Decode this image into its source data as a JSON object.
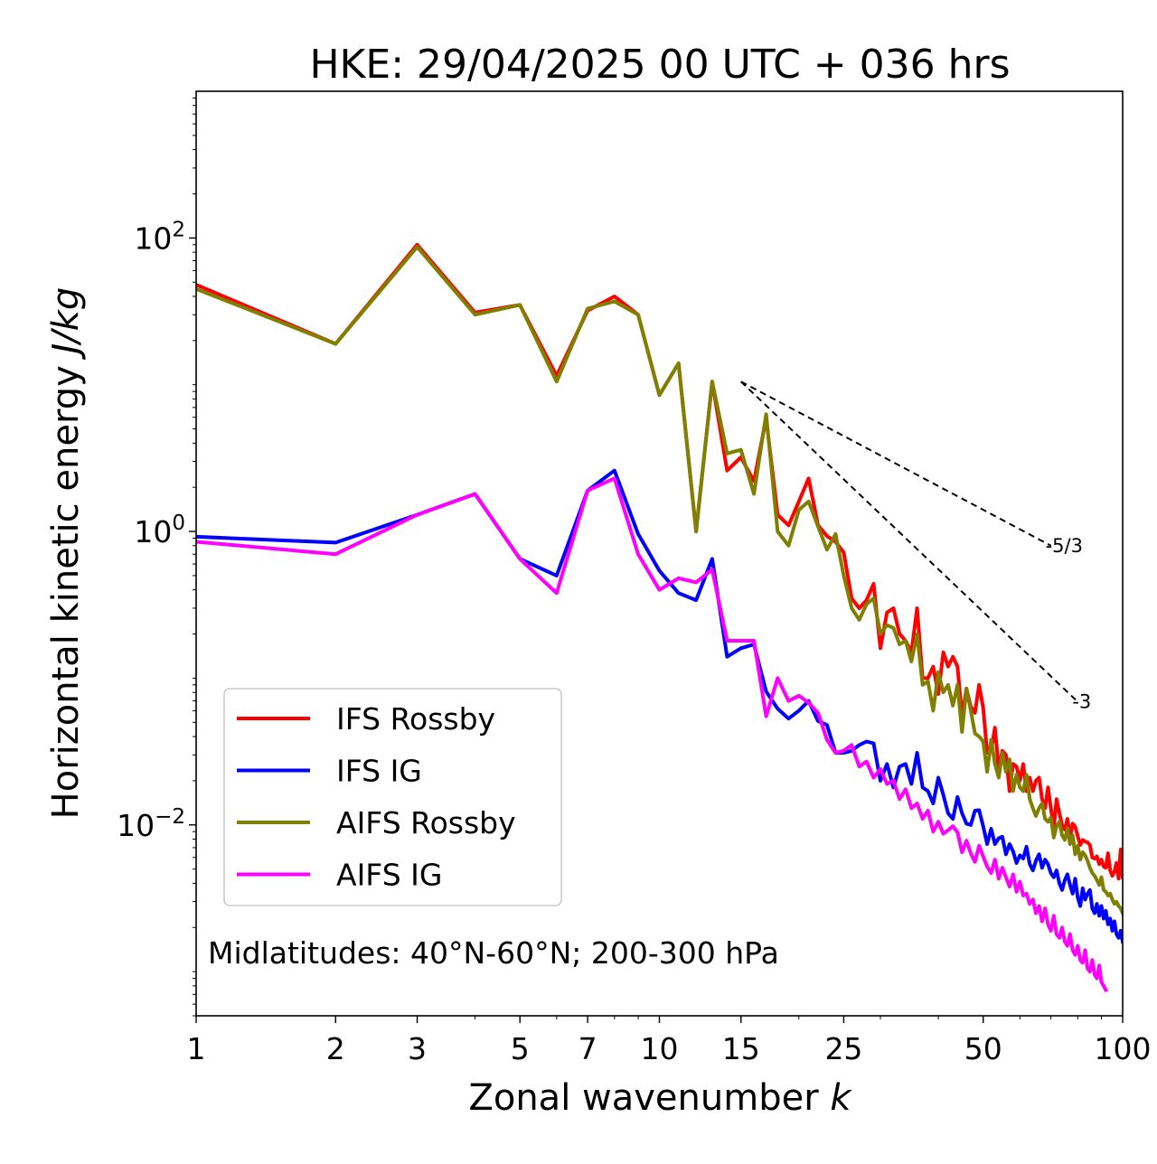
{
  "chart_data": {
    "type": "line",
    "title": "HKE: 29/04/2025 00 UTC + 036 hrs",
    "xlabel": "Zonal wavenumber",
    "xlabel_var": "k",
    "ylabel": "Horizontal kinetic energy",
    "ylabel_unit": "J/kg",
    "xscale": "log",
    "yscale": "log",
    "xlim": [
      1,
      100
    ],
    "ylim": [
      0.0005,
      1000
    ],
    "xticks": [
      {
        "value": 1,
        "label": "1"
      },
      {
        "value": 2,
        "label": "2"
      },
      {
        "value": 3,
        "label": "3"
      },
      {
        "value": 5,
        "label": "5"
      },
      {
        "value": 7,
        "label": "7"
      },
      {
        "value": 10,
        "label": "10"
      },
      {
        "value": 15,
        "label": "15"
      },
      {
        "value": 25,
        "label": "25"
      },
      {
        "value": 50,
        "label": "50"
      },
      {
        "value": 100,
        "label": "100"
      }
    ],
    "yticks": [
      {
        "value": 0.01,
        "base": "10",
        "exp": "−2"
      },
      {
        "value": 1,
        "base": "10",
        "exp": "0"
      },
      {
        "value": 100,
        "base": "10",
        "exp": "2"
      }
    ],
    "annotation": "Midlatitudes: 40°N-60°N; 200-300 hPa",
    "legend_position": "lower-left",
    "reference_lines": [
      {
        "label": "-5/3",
        "x": [
          15,
          70
        ],
        "y": [
          10.5,
          0.8
        ]
      },
      {
        "label": "-3",
        "x": [
          15,
          80
        ],
        "y": [
          10.5,
          0.069
        ]
      }
    ],
    "series": [
      {
        "name": "IFS Rossby",
        "color": "#ff0000",
        "x": [
          1,
          2,
          3,
          4,
          5,
          6,
          7,
          8,
          9,
          10,
          11,
          12,
          13,
          14,
          15,
          16,
          17,
          18,
          19,
          20,
          21,
          22,
          23,
          24,
          25,
          26,
          27,
          28,
          29,
          30,
          31,
          32,
          33,
          34,
          35,
          36,
          37,
          38,
          39,
          40,
          41,
          42,
          43,
          44,
          45,
          46,
          47,
          48,
          49,
          50,
          51,
          52,
          53,
          54,
          55,
          56,
          57,
          58,
          59,
          60,
          61,
          62,
          63,
          64,
          65,
          66,
          67,
          68,
          69,
          70,
          71,
          72,
          73,
          74,
          75,
          76,
          77,
          78,
          79,
          80,
          81,
          82,
          83,
          84,
          85,
          86,
          87,
          88,
          89,
          90,
          91,
          92,
          93,
          94,
          95,
          96,
          97,
          98,
          99,
          100
        ],
        "y": [
          48,
          19,
          90,
          31,
          35,
          11.5,
          32,
          40,
          30,
          8.5,
          14,
          1,
          10.5,
          2.6,
          3.2,
          2.2,
          5.9,
          1.3,
          1.1,
          1.6,
          2.3,
          1.1,
          0.93,
          0.85,
          0.72,
          0.35,
          0.3,
          0.34,
          0.44,
          0.16,
          0.28,
          0.3,
          0.2,
          0.18,
          0.15,
          0.3,
          0.1,
          0.1,
          0.12,
          0.078,
          0.15,
          0.12,
          0.14,
          0.12,
          0.055,
          0.085,
          0.064,
          0.058,
          0.09,
          0.063,
          0.031,
          0.032,
          0.046,
          0.024,
          0.032,
          0.03,
          0.017,
          0.026,
          0.025,
          0.02,
          0.026,
          0.017,
          0.021,
          0.017,
          0.02,
          0.021,
          0.015,
          0.013,
          0.018,
          0.013,
          0.0095,
          0.015,
          0.012,
          0.01,
          0.0093,
          0.011,
          0.0082,
          0.0102,
          0.0097,
          0.0084,
          0.0073,
          0.0079,
          0.0077,
          0.0076,
          0.0073,
          0.006,
          0.0059,
          0.0061,
          0.0054,
          0.0058,
          0.0052,
          0.0051,
          0.0064,
          0.0049,
          0.0045,
          0.0048,
          0.0055,
          0.0043,
          0.0068,
          0.0044
        ]
      },
      {
        "name": "IFS IG",
        "color": "#0000ff",
        "x": [
          1,
          2,
          3,
          4,
          5,
          6,
          7,
          8,
          9,
          10,
          11,
          12,
          13,
          14,
          15,
          16,
          17,
          18,
          19,
          20,
          21,
          22,
          23,
          24,
          25,
          26,
          27,
          28,
          29,
          30,
          31,
          32,
          33,
          34,
          35,
          36,
          37,
          38,
          39,
          40,
          41,
          42,
          43,
          44,
          45,
          46,
          47,
          48,
          49,
          50,
          51,
          52,
          53,
          54,
          55,
          56,
          57,
          58,
          59,
          60,
          61,
          62,
          63,
          64,
          65,
          66,
          67,
          68,
          69,
          70,
          71,
          72,
          73,
          74,
          75,
          76,
          77,
          78,
          79,
          80,
          81,
          82,
          83,
          84,
          85,
          86,
          87,
          88,
          89,
          90,
          91,
          92,
          93,
          94,
          95,
          96,
          97,
          98,
          99,
          100
        ],
        "y": [
          0.92,
          0.84,
          1.3,
          1.8,
          0.65,
          0.5,
          1.9,
          2.6,
          0.96,
          0.54,
          0.38,
          0.34,
          0.65,
          0.14,
          0.16,
          0.17,
          0.081,
          0.062,
          0.053,
          0.06,
          0.07,
          0.051,
          0.048,
          0.031,
          0.031,
          0.032,
          0.035,
          0.037,
          0.036,
          0.02,
          0.026,
          0.018,
          0.025,
          0.026,
          0.019,
          0.031,
          0.018,
          0.017,
          0.014,
          0.021,
          0.016,
          0.012,
          0.011,
          0.0155,
          0.012,
          0.0102,
          0.01,
          0.0125,
          0.0126,
          0.0098,
          0.0074,
          0.0094,
          0.0074,
          0.0081,
          0.0083,
          0.0063,
          0.0074,
          0.0066,
          0.0055,
          0.0062,
          0.0059,
          0.0071,
          0.0054,
          0.0049,
          0.0057,
          0.0063,
          0.0051,
          0.0058,
          0.0054,
          0.0047,
          0.0044,
          0.0049,
          0.004,
          0.0036,
          0.0042,
          0.0046,
          0.0039,
          0.0034,
          0.0043,
          0.0032,
          0.0028,
          0.0037,
          0.0031,
          0.0034,
          0.0036,
          0.0027,
          0.0025,
          0.0029,
          0.0024,
          0.0028,
          0.0023,
          0.0026,
          0.0021,
          0.0023,
          0.0019,
          0.0022,
          0.0018,
          0.0017,
          0.0019,
          0.0016
        ]
      },
      {
        "name": "AIFS Rossby",
        "color": "#808000",
        "x": [
          1,
          2,
          3,
          4,
          5,
          6,
          7,
          8,
          9,
          10,
          11,
          12,
          13,
          14,
          15,
          16,
          17,
          18,
          19,
          20,
          21,
          22,
          23,
          24,
          25,
          26,
          27,
          28,
          29,
          30,
          31,
          32,
          33,
          34,
          35,
          36,
          37,
          38,
          39,
          40,
          41,
          42,
          43,
          44,
          45,
          46,
          47,
          48,
          49,
          50,
          51,
          52,
          53,
          54,
          55,
          56,
          57,
          58,
          59,
          60,
          61,
          62,
          63,
          64,
          65,
          66,
          67,
          68,
          69,
          70,
          71,
          72,
          73,
          74,
          75,
          76,
          77,
          78,
          79,
          80,
          81,
          82,
          83,
          84,
          85,
          86,
          87,
          88,
          89,
          90,
          91,
          92,
          93,
          94,
          95,
          96,
          97,
          98,
          99,
          100
        ],
        "y": [
          45,
          19,
          87,
          30,
          35,
          10.5,
          33,
          37,
          30,
          8.5,
          14,
          1,
          10.5,
          3.4,
          3.6,
          1.8,
          6.3,
          1,
          0.8,
          1.4,
          1.6,
          1.08,
          0.75,
          0.96,
          0.5,
          0.3,
          0.25,
          0.32,
          0.35,
          0.2,
          0.23,
          0.22,
          0.17,
          0.18,
          0.13,
          0.2,
          0.09,
          0.095,
          0.06,
          0.11,
          0.08,
          0.09,
          0.065,
          0.09,
          0.043,
          0.085,
          0.06,
          0.042,
          0.04,
          0.037,
          0.023,
          0.038,
          0.026,
          0.021,
          0.031,
          0.023,
          0.028,
          0.017,
          0.022,
          0.018,
          0.017,
          0.022,
          0.015,
          0.013,
          0.0115,
          0.013,
          0.014,
          0.011,
          0.0105,
          0.0112,
          0.0082,
          0.0098,
          0.0105,
          0.0085,
          0.0079,
          0.0095,
          0.0074,
          0.0085,
          0.0063,
          0.0072,
          0.0058,
          0.0065,
          0.0062,
          0.0057,
          0.0051,
          0.0047,
          0.0045,
          0.0042,
          0.0039,
          0.0044,
          0.0036,
          0.0035,
          0.0033,
          0.0034,
          0.0031,
          0.0029,
          0.003,
          0.0028,
          0.0027,
          0.0025
        ]
      },
      {
        "name": "AIFS IG",
        "color": "#ff00ff",
        "x": [
          1,
          2,
          3,
          4,
          5,
          6,
          7,
          8,
          9,
          10,
          11,
          12,
          13,
          14,
          15,
          16,
          17,
          18,
          19,
          20,
          21,
          22,
          23,
          24,
          25,
          26,
          27,
          28,
          29,
          30,
          31,
          32,
          33,
          34,
          35,
          36,
          37,
          38,
          39,
          40,
          41,
          42,
          43,
          44,
          45,
          46,
          47,
          48,
          49,
          50,
          51,
          52,
          53,
          54,
          55,
          56,
          57,
          58,
          59,
          60,
          61,
          62,
          63,
          64,
          65,
          66,
          67,
          68,
          69,
          70,
          71,
          72,
          73,
          74,
          75,
          76,
          77,
          78,
          79,
          80,
          81,
          82,
          83,
          84,
          85,
          86,
          87,
          88,
          89,
          90,
          91,
          92
        ],
        "y": [
          0.85,
          0.7,
          1.3,
          1.8,
          0.65,
          0.38,
          1.9,
          2.3,
          0.7,
          0.4,
          0.48,
          0.45,
          0.55,
          0.18,
          0.18,
          0.18,
          0.055,
          0.1,
          0.07,
          0.076,
          0.068,
          0.058,
          0.038,
          0.031,
          0.032,
          0.035,
          0.025,
          0.027,
          0.021,
          0.024,
          0.019,
          0.02,
          0.015,
          0.0175,
          0.013,
          0.014,
          0.011,
          0.0125,
          0.009,
          0.0105,
          0.0087,
          0.0092,
          0.0098,
          0.0089,
          0.0065,
          0.0078,
          0.0064,
          0.0056,
          0.0072,
          0.0061,
          0.0052,
          0.0047,
          0.0058,
          0.0043,
          0.0051,
          0.0044,
          0.0038,
          0.0046,
          0.0035,
          0.0041,
          0.0033,
          0.0034,
          0.0029,
          0.0031,
          0.0025,
          0.0028,
          0.0022,
          0.0027,
          0.0021,
          0.0019,
          0.0024,
          0.0018,
          0.0017,
          0.002,
          0.0016,
          0.0015,
          0.0018,
          0.0014,
          0.0013,
          0.0015,
          0.0012,
          0.00115,
          0.0014,
          0.00105,
          0.001,
          0.0012,
          0.00095,
          0.0009,
          0.0011,
          0.00085,
          0.0008,
          0.00075
        ]
      }
    ]
  }
}
